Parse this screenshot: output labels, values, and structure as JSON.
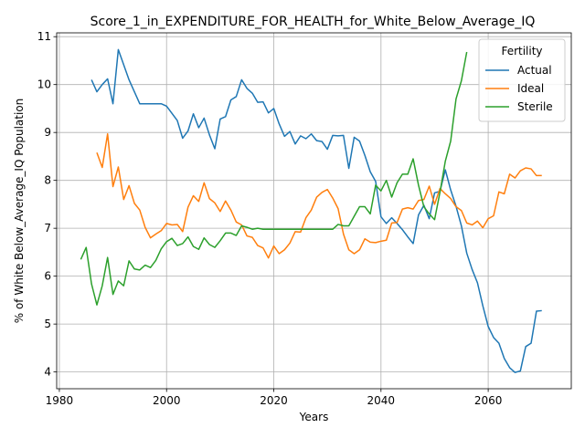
{
  "chart_data": {
    "type": "line",
    "title": "Score_1_in_EXPENDITURE_FOR_HEALTH_for_White_Below_Average_IQ",
    "xlabel": "Years",
    "ylabel": "% of White Below_Average_IQ Population",
    "xlim": [
      1979.5,
      2075.5
    ],
    "ylim": [
      3.65,
      11.08
    ],
    "xticks": [
      1980,
      2000,
      2020,
      2040,
      2060
    ],
    "yticks": [
      4,
      5,
      6,
      7,
      8,
      9,
      10,
      11
    ],
    "grid": true,
    "legend": {
      "title": "Fertility",
      "position": "top-right"
    },
    "series": [
      {
        "name": "Actual",
        "color": "#1f77b4",
        "x": [
          1986,
          1987,
          1988,
          1989,
          1990,
          1991,
          1993,
          1995,
          1999,
          2000,
          2002,
          2003,
          2004,
          2005,
          2006,
          2007,
          2008,
          2009,
          2010,
          2011,
          2012,
          2013,
          2014,
          2015,
          2016,
          2017,
          2018,
          2019,
          2020,
          2021,
          2022,
          2023,
          2024,
          2025,
          2026,
          2027,
          2028,
          2029,
          2030,
          2031,
          2032,
          2033,
          2034,
          2035,
          2036,
          2037,
          2038,
          2039,
          2040,
          2041,
          2042,
          2043,
          2044,
          2045,
          2046,
          2047,
          2048,
          2049,
          2050,
          2051,
          2052,
          2053,
          2054,
          2055,
          2056,
          2057,
          2058,
          2059,
          2060,
          2061,
          2062,
          2063,
          2064,
          2065,
          2066,
          2067,
          2068,
          2069,
          2070
        ],
        "values": [
          10.1,
          9.85,
          10.0,
          10.12,
          9.6,
          10.73,
          10.1,
          9.6,
          9.6,
          9.55,
          9.25,
          8.88,
          9.03,
          9.39,
          9.1,
          9.3,
          8.95,
          8.66,
          9.28,
          9.33,
          9.68,
          9.75,
          10.1,
          9.92,
          9.82,
          9.63,
          9.64,
          9.41,
          9.5,
          9.18,
          8.92,
          9.02,
          8.76,
          8.93,
          8.87,
          8.97,
          8.83,
          8.81,
          8.65,
          8.94,
          8.93,
          8.94,
          8.25,
          8.9,
          8.82,
          8.52,
          8.18,
          7.98,
          7.24,
          7.1,
          7.22,
          7.1,
          6.97,
          6.82,
          6.68,
          7.28,
          7.48,
          7.2,
          7.74,
          7.77,
          8.22,
          7.8,
          7.46,
          7.05,
          6.48,
          6.14,
          5.86,
          5.38,
          4.95,
          4.72,
          4.6,
          4.28,
          4.09,
          3.99,
          4.02,
          4.53,
          4.6,
          5.27,
          5.28
        ]
      },
      {
        "name": "Ideal",
        "color": "#ff7f0e",
        "x": [
          1987,
          1988,
          1989,
          1990,
          1991,
          1992,
          1993,
          1994,
          1995,
          1996,
          1997,
          1998,
          1999,
          2000,
          2001,
          2002,
          2003,
          2004,
          2005,
          2006,
          2007,
          2008,
          2009,
          2010,
          2011,
          2012,
          2013,
          2014,
          2015,
          2016,
          2017,
          2018,
          2019,
          2020,
          2021,
          2022,
          2023,
          2024,
          2025,
          2026,
          2027,
          2028,
          2029,
          2030,
          2031,
          2032,
          2033,
          2034,
          2035,
          2036,
          2037,
          2038,
          2039,
          2040,
          2041,
          2042,
          2043,
          2044,
          2045,
          2046,
          2047,
          2048,
          2049,
          2050,
          2051,
          2052,
          2053,
          2054,
          2055,
          2056,
          2057,
          2058,
          2059,
          2060,
          2061,
          2062,
          2063,
          2064,
          2065,
          2066,
          2067,
          2068,
          2069,
          2070
        ],
        "values": [
          8.58,
          8.27,
          8.97,
          7.87,
          8.28,
          7.6,
          7.89,
          7.52,
          7.38,
          7.02,
          6.8,
          6.88,
          6.95,
          7.1,
          7.07,
          7.08,
          6.93,
          7.44,
          7.68,
          7.56,
          7.95,
          7.62,
          7.53,
          7.35,
          7.57,
          7.38,
          7.13,
          7.07,
          6.84,
          6.81,
          6.64,
          6.59,
          6.38,
          6.63,
          6.47,
          6.55,
          6.69,
          6.93,
          6.92,
          7.22,
          7.38,
          7.65,
          7.75,
          7.81,
          7.63,
          7.41,
          6.88,
          6.55,
          6.47,
          6.55,
          6.78,
          6.71,
          6.7,
          6.73,
          6.75,
          7.11,
          7.12,
          7.4,
          7.43,
          7.4,
          7.58,
          7.6,
          7.88,
          7.5,
          7.83,
          7.72,
          7.62,
          7.45,
          7.37,
          7.11,
          7.07,
          7.15,
          7.01,
          7.2,
          7.26,
          7.76,
          7.72,
          8.13,
          8.05,
          8.2,
          8.26,
          8.24,
          8.1,
          8.1
        ]
      },
      {
        "name": "Sterile",
        "color": "#2ca02c",
        "x": [
          1984,
          1985,
          1986,
          1987,
          1988,
          1989,
          1990,
          1991,
          1992,
          1993,
          1994,
          1995,
          1996,
          1997,
          1998,
          1999,
          2000,
          2001,
          2002,
          2003,
          2004,
          2005,
          2006,
          2007,
          2008,
          2009,
          2010,
          2011,
          2012,
          2013,
          2014,
          2015,
          2016,
          2017,
          2018,
          2019,
          2020,
          2031,
          2032,
          2033,
          2034,
          2035,
          2036,
          2037,
          2038,
          2039,
          2040,
          2041,
          2042,
          2043,
          2044,
          2045,
          2046,
          2047,
          2048,
          2049,
          2050,
          2051,
          2052,
          2053,
          2054,
          2055,
          2056
        ],
        "values": [
          6.35,
          6.6,
          5.84,
          5.4,
          5.8,
          6.39,
          5.62,
          5.9,
          5.8,
          6.32,
          6.15,
          6.13,
          6.23,
          6.18,
          6.33,
          6.57,
          6.72,
          6.79,
          6.64,
          6.68,
          6.82,
          6.62,
          6.56,
          6.8,
          6.66,
          6.6,
          6.74,
          6.9,
          6.9,
          6.85,
          7.05,
          7.02,
          6.98,
          7.0,
          6.98,
          6.98,
          6.98,
          6.98,
          7.08,
          7.05,
          7.05,
          7.25,
          7.45,
          7.45,
          7.3,
          7.9,
          7.78,
          8.0,
          7.65,
          7.95,
          8.13,
          8.13,
          8.45,
          7.9,
          7.45,
          7.3,
          7.18,
          7.75,
          8.4,
          8.82,
          9.7,
          10.08,
          10.68
        ]
      }
    ]
  }
}
